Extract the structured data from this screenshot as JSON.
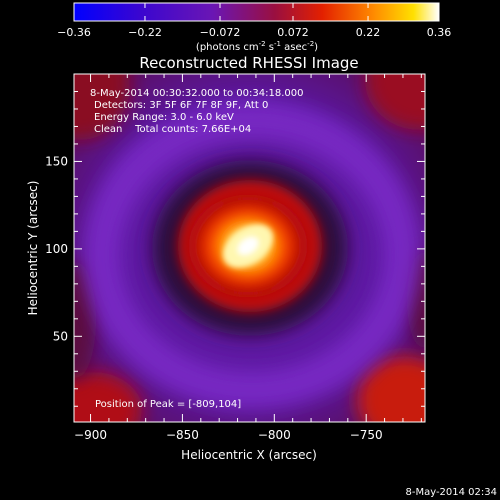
{
  "chart_data": {
    "type": "heatmap",
    "title": "Reconstructed RHESSI Image",
    "xlabel": "Heliocentric X (arcsec)",
    "ylabel": "Heliocentric Y (arcsec)",
    "xlim": [
      -909,
      -718
    ],
    "ylim": [
      1,
      200
    ],
    "x_ticks": [
      -900,
      -850,
      -800,
      -750
    ],
    "y_ticks": [
      50,
      100,
      150
    ],
    "colorbar": {
      "min": -0.36,
      "max": 0.36,
      "ticks": [
        "-0.36",
        "-0.22",
        "-0.072",
        "0.072",
        "0.22",
        "0.36"
      ],
      "tick_values": [
        -0.36,
        -0.22,
        -0.072,
        0.072,
        0.22,
        0.36
      ],
      "label_units": "(photons cm",
      "label_exp1": "-2",
      "label_mid": " s",
      "label_exp2": "-1",
      "label_tail": " asec",
      "label_exp3": "-2",
      "label_close": ")"
    },
    "annotations": {
      "time_range": "8-May-2014 00:30:32.000 to 00:34:18.000",
      "detectors": "Detectors: 3F 5F 6F 7F 8F 9F, Att 0",
      "energy": "Energy Range: 3.0 - 6.0 keV",
      "clean": "Clean    Total counts: 7.66E+04",
      "peak": "Position of Peak = [-809,104]"
    },
    "peak": {
      "x": -809,
      "y": 104,
      "value": 0.36
    },
    "footer_timestamp": "8-May-2014 02:34",
    "colormap_stops": [
      "#0000ff",
      "#5a0aa0",
      "#7a1aa0",
      "#b01020",
      "#ff3000",
      "#ff9000",
      "#ffe000",
      "#ffffff"
    ]
  }
}
